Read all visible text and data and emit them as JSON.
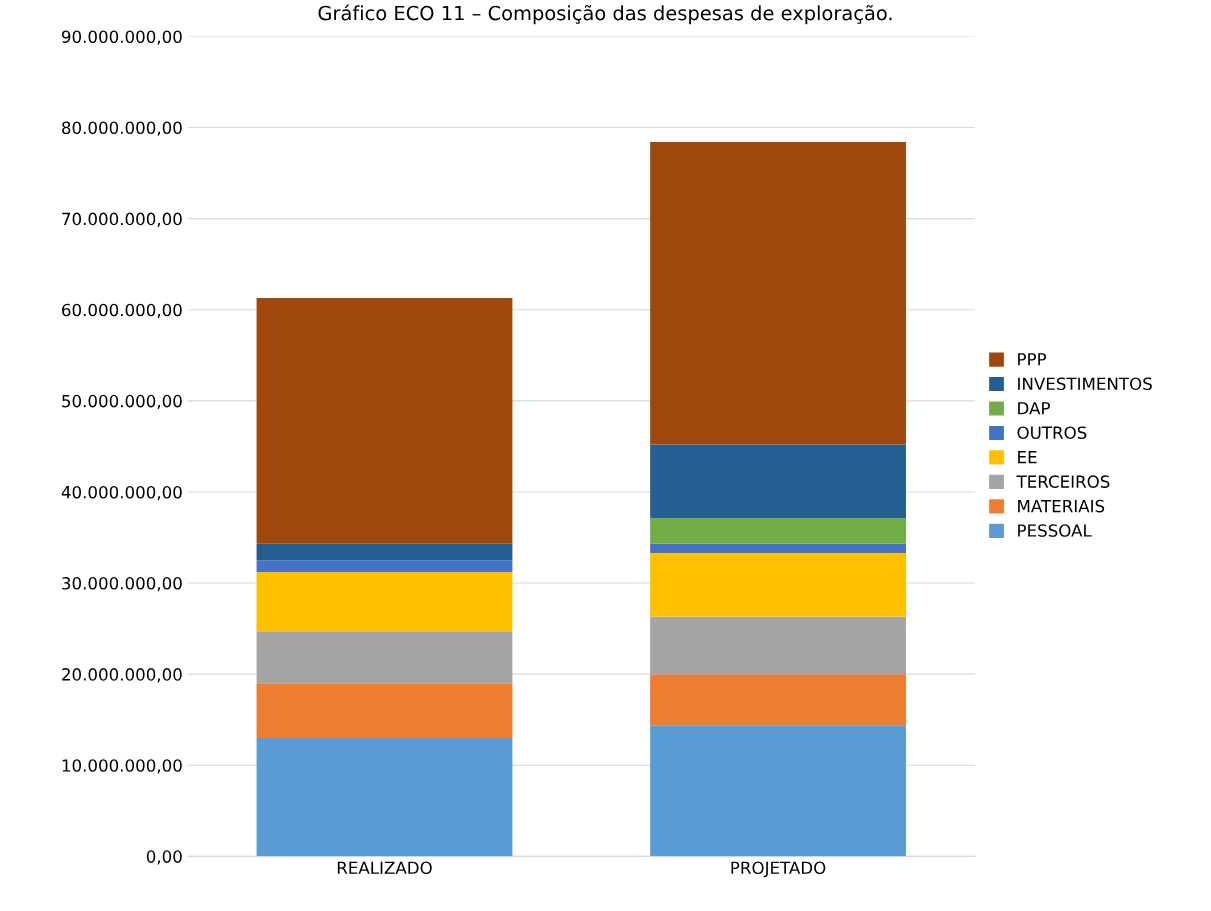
{
  "chart_data": {
    "type": "bar",
    "title": "Gráfico ECO 11 – Composição das despesas de exploração.",
    "categories": [
      "REALIZADO",
      "PROJETADO"
    ],
    "stacked": true,
    "series": [
      {
        "name": "PESSOAL",
        "color": "#5b9bd5",
        "values": [
          13000000,
          14400000
        ]
      },
      {
        "name": "MATERIAIS",
        "color": "#ed7d31",
        "values": [
          6000000,
          5600000
        ]
      },
      {
        "name": "TERCEIROS",
        "color": "#a5a5a5",
        "values": [
          5700000,
          6300000
        ]
      },
      {
        "name": "EE",
        "color": "#ffc000",
        "values": [
          6500000,
          7000000
        ]
      },
      {
        "name": "OUTROS",
        "color": "#4472c4",
        "values": [
          1300000,
          1000000
        ]
      },
      {
        "name": "DAP",
        "color": "#70ad47",
        "values": [
          0,
          2800000
        ]
      },
      {
        "name": "INVESTIMENTOS",
        "color": "#255e91",
        "values": [
          1800000,
          8100000
        ]
      },
      {
        "name": "PPP",
        "color": "#9e480e",
        "values": [
          27000000,
          33200000
        ]
      }
    ],
    "ylim": [
      0,
      90000000
    ],
    "yticks": [
      {
        "value": 0,
        "label": "0,00"
      },
      {
        "value": 10000000,
        "label": "10.000.000,00"
      },
      {
        "value": 20000000,
        "label": "20.000.000,00"
      },
      {
        "value": 30000000,
        "label": "30.000.000,00"
      },
      {
        "value": 40000000,
        "label": "40.000.000,00"
      },
      {
        "value": 50000000,
        "label": "50.000.000,00"
      },
      {
        "value": 60000000,
        "label": "60.000.000,00"
      },
      {
        "value": 70000000,
        "label": "70.000.000,00"
      },
      {
        "value": 80000000,
        "label": "80.000.000,00"
      },
      {
        "value": 90000000,
        "label": "90.000.000,00"
      }
    ],
    "grid": "y",
    "legend": "right"
  }
}
